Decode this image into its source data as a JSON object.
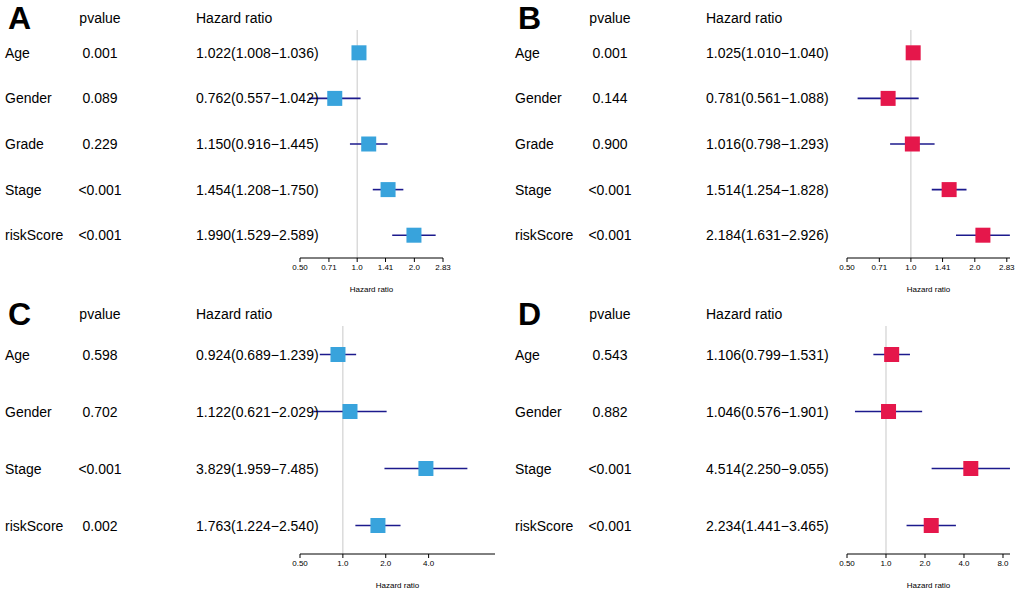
{
  "chart_data": [
    {
      "type": "forest",
      "title": "A",
      "column_headers": [
        "pvalue",
        "Hazard ratio"
      ],
      "x_label": "Hazard ratio",
      "categories": [
        "Age",
        "Gender",
        "Grade",
        "Stage",
        "riskScore"
      ],
      "values": [
        1.022,
        0.762,
        1.15,
        1.454,
        1.99
      ],
      "lower": [
        1.008,
        0.557,
        0.916,
        1.208,
        1.529
      ],
      "upper": [
        1.036,
        1.042,
        1.445,
        1.75,
        2.589
      ],
      "pvalues": [
        "0.001",
        "0.089",
        "0.229",
        "<0.001",
        "<0.001"
      ],
      "value_labels": [
        "1.022(1.008−1.036)",
        "0.762(0.557−1.042)",
        "1.150(0.916−1.445)",
        "1.454(1.208−1.750)",
        "1.990(1.529−2.589)"
      ],
      "color": "#38a3dc",
      "log": "x",
      "reference_line": 1,
      "xlim": [
        0.5,
        2.83
      ],
      "xticks": [
        {
          "value": 0.5,
          "label": "0.50"
        },
        0.71,
        {
          "value": 1,
          "label": "1.0"
        },
        1.41,
        {
          "value": 2,
          "label": "2.0"
        },
        2.83
      ]
    },
    {
      "type": "forest",
      "title": "B",
      "column_headers": [
        "pvalue",
        "Hazard ratio"
      ],
      "x_label": "Hazard ratio",
      "categories": [
        "Age",
        "Gender",
        "Grade",
        "Stage",
        "riskScore"
      ],
      "values": [
        1.025,
        0.781,
        1.016,
        1.514,
        2.184
      ],
      "lower": [
        1.01,
        0.561,
        0.798,
        1.254,
        1.631
      ],
      "upper": [
        1.04,
        1.088,
        1.293,
        1.828,
        2.926
      ],
      "pvalues": [
        "0.001",
        "0.144",
        "0.900",
        "<0.001",
        "<0.001"
      ],
      "value_labels": [
        "1.025(1.010−1.040)",
        "0.781(0.561−1.088)",
        "1.016(0.798−1.293)",
        "1.514(1.254−1.828)",
        "2.184(1.631−2.926)"
      ],
      "color": "#e5174b",
      "log": "x",
      "reference_line": 1,
      "xlim": [
        0.5,
        2.93
      ],
      "xticks": [
        {
          "value": 0.5,
          "label": "0.50"
        },
        0.71,
        {
          "value": 1,
          "label": "1.0"
        },
        1.41,
        {
          "value": 2,
          "label": "2.0"
        },
        2.83
      ]
    },
    {
      "type": "forest",
      "title": "C",
      "column_headers": [
        "pvalue",
        "Hazard ratio"
      ],
      "x_label": "Hazard ratio",
      "categories": [
        "Age",
        "Gender",
        "Stage",
        "riskScore"
      ],
      "values": [
        0.924,
        1.122,
        3.829,
        1.763
      ],
      "lower": [
        0.689,
        0.621,
        1.959,
        1.224
      ],
      "upper": [
        1.239,
        2.029,
        7.485,
        2.54
      ],
      "pvalues": [
        "0.598",
        "0.702",
        "<0.001",
        "0.002"
      ],
      "value_labels": [
        "0.924(0.689−1.239)",
        "1.122(0.621−2.029)",
        "3.829(1.959−7.485)",
        "1.763(1.224−2.540)"
      ],
      "color": "#38a3dc",
      "log": "x",
      "reference_line": 1,
      "xlim": [
        0.5,
        11.7
      ],
      "xticks": [
        {
          "value": 0.5,
          "label": "0.50"
        },
        {
          "value": 1,
          "label": "1.0"
        },
        {
          "value": 2,
          "label": "2.0"
        },
        {
          "value": 4,
          "label": "4.0"
        }
      ]
    },
    {
      "type": "forest",
      "title": "D",
      "column_headers": [
        "pvalue",
        "Hazard ratio"
      ],
      "x_label": "Hazard ratio",
      "categories": [
        "Age",
        "Gender",
        "Stage",
        "riskScore"
      ],
      "values": [
        1.106,
        1.046,
        4.514,
        2.234
      ],
      "lower": [
        0.799,
        0.576,
        2.25,
        1.441
      ],
      "upper": [
        1.531,
        1.901,
        9.055,
        3.465
      ],
      "pvalues": [
        "0.543",
        "0.882",
        "<0.001",
        "<0.001"
      ],
      "value_labels": [
        "1.106(0.799−1.531)",
        "1.046(0.576−1.901)",
        "4.514(2.250−9.055)",
        "2.234(1.441−3.465)"
      ],
      "color": "#e5174b",
      "log": "x",
      "reference_line": 1,
      "xlim": [
        0.5,
        9.06
      ],
      "xticks": [
        {
          "value": 0.5,
          "label": "0.50"
        },
        {
          "value": 1,
          "label": "1.0"
        },
        {
          "value": 2,
          "label": "2.0"
        },
        {
          "value": 4,
          "label": "4.0"
        },
        {
          "value": 8,
          "label": "8.0"
        }
      ]
    }
  ]
}
